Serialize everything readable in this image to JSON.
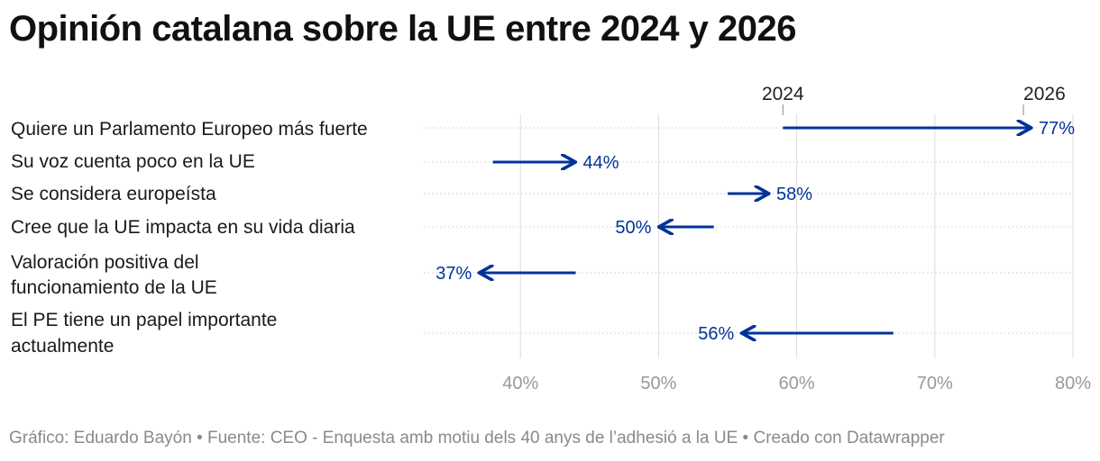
{
  "title": "Opinión catalana sobre la UE entre 2024 y 2026",
  "footer": "Gráfico: Eduardo Bayón • Fuente: CEO - Enquesta amb motiu dels 40 anys de l’adhesió a la UE • Creado con Datawrapper",
  "colors": {
    "arrow": "#003399",
    "label": "#003399",
    "grid": "#dddddd",
    "tick": "#999999"
  },
  "chart_data": {
    "type": "arrow",
    "x_start_label": "2024",
    "x_end_label": "2026",
    "xlim": [
      33,
      80
    ],
    "xticks": [
      40,
      50,
      60,
      70,
      80
    ],
    "tick_suffix": "%",
    "grid": true,
    "categories": [
      "Quiere un Parlamento Europeo más fuerte",
      "Su voz cuenta poco en la UE",
      "Se considera europeísta",
      "Cree que la UE impacta en su vida diaria",
      "Valoración positiva del funcionamiento de la UE",
      "El PE tiene un papel importante actualmente"
    ],
    "series": [
      {
        "name": "2024",
        "values": [
          59,
          38,
          55,
          54,
          44,
          67
        ]
      },
      {
        "name": "2026",
        "values": [
          77,
          44,
          58,
          50,
          37,
          56
        ]
      }
    ],
    "end_labels": [
      "77%",
      "44%",
      "58%",
      "50%",
      "37%",
      "56%"
    ]
  }
}
